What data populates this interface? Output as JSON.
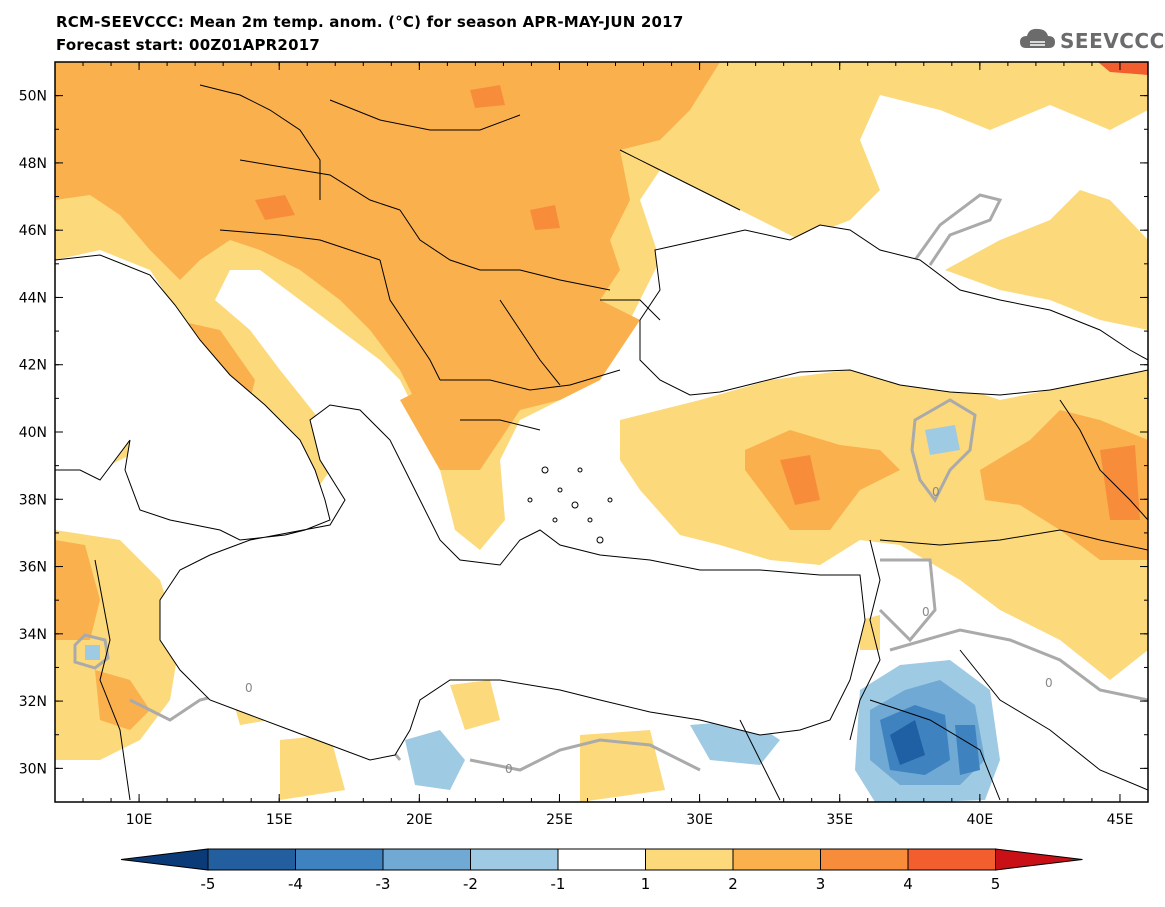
{
  "header": {
    "title_line1": "RCM-SEEVCCC: Mean 2m temp. anom. (°C) for season APR-MAY-JUN 2017",
    "title_line2": "Forecast start: 00Z01APR2017"
  },
  "logo": {
    "text": "SEEVCCC",
    "icon": "cloud-icon"
  },
  "map": {
    "lon_range": [
      7,
      46
    ],
    "lat_range": [
      29,
      51
    ],
    "lon_ticks": [
      {
        "value": 10,
        "label": "10E"
      },
      {
        "value": 15,
        "label": "15E"
      },
      {
        "value": 20,
        "label": "20E"
      },
      {
        "value": 25,
        "label": "25E"
      },
      {
        "value": 30,
        "label": "30E"
      },
      {
        "value": 35,
        "label": "35E"
      },
      {
        "value": 40,
        "label": "40E"
      },
      {
        "value": 45,
        "label": "45E"
      }
    ],
    "lat_ticks": [
      {
        "value": 30,
        "label": "30N"
      },
      {
        "value": 32,
        "label": "32N"
      },
      {
        "value": 34,
        "label": "34N"
      },
      {
        "value": 36,
        "label": "36N"
      },
      {
        "value": 38,
        "label": "38N"
      },
      {
        "value": 40,
        "label": "40N"
      },
      {
        "value": 42,
        "label": "42N"
      },
      {
        "value": 44,
        "label": "44N"
      },
      {
        "value": 46,
        "label": "46N"
      },
      {
        "value": 48,
        "label": "48N"
      },
      {
        "value": 50,
        "label": "50N"
      }
    ],
    "contour_labels": [
      "0",
      "0",
      "0",
      "0",
      "0"
    ],
    "colors": {
      "anom_1_2": "#fcd97a",
      "anom_2_3": "#fbb04e",
      "anom_3_4": "#f78d3b",
      "anom_4_5": "#f25e2e",
      "anom_m1_m2": "#9fcae3",
      "anom_m2_m3": "#6fa9d4",
      "anom_m3_m4": "#3f82c0",
      "anom_m4_m5": "#1f5fa3",
      "zero_contour": "#aaaaaa"
    }
  },
  "colorbar": {
    "boundaries": [
      "-5",
      "-4",
      "-3",
      "-2",
      "-1",
      "1",
      "2",
      "3",
      "4",
      "5"
    ],
    "colors": [
      "#0b3a78",
      "#235f9e",
      "#3f82c0",
      "#6fa9d4",
      "#9fcae3",
      "#ffffff",
      "#fcd97a",
      "#fbb04e",
      "#f78d3b",
      "#f25e2e",
      "#e5251d",
      "#c91016"
    ]
  }
}
